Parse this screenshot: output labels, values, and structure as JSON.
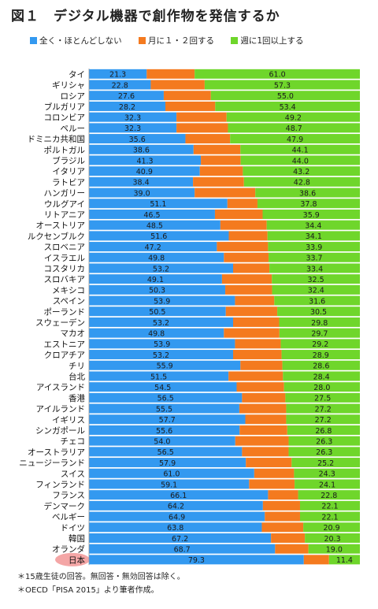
{
  "title": "図１　デジタル機器で創作物を発信するか",
  "legend": [
    {
      "label": "全く・ほとんどしない",
      "color": "#3399f0"
    },
    {
      "label": "月に１・２回する",
      "color": "#f47a1f"
    },
    {
      "label": "週に1回以上する",
      "color": "#6fd62b"
    }
  ],
  "highlight_color": "#f4a6a6",
  "notes": [
    "＊15歳生徒の回答。無回答・無効回答は除く。",
    "＊OECD「PISA 2015」より筆者作成。"
  ],
  "chart_data": {
    "type": "bar",
    "orientation": "horizontal",
    "stacked": "100%",
    "xlim": [
      0,
      100
    ],
    "categories": [
      "タイ",
      "ギリシャ",
      "ロシア",
      "ブルガリア",
      "コロンビア",
      "ペルー",
      "ドミニカ共和国",
      "ポルトガル",
      "ブラジル",
      "イタリア",
      "ラトビア",
      "ハンガリー",
      "ウルグアイ",
      "リトアニア",
      "オーストリア",
      "ルクセンブルク",
      "スロベニア",
      "イスラエル",
      "コスタリカ",
      "スロバキア",
      "メキシコ",
      "スペイン",
      "ポーランド",
      "スウェーデン",
      "マカオ",
      "エストニア",
      "クロアチア",
      "チリ",
      "台北",
      "アイスランド",
      "香港",
      "アイルランド",
      "イギリス",
      "シンガポール",
      "チェコ",
      "オーストラリア",
      "ニュージーランド",
      "スイス",
      "フィンランド",
      "フランス",
      "デンマーク",
      "ベルギー",
      "ドイツ",
      "韓国",
      "オランダ",
      "日本"
    ],
    "highlight_category": "日本",
    "series": [
      {
        "name": "全く・ほとんどしない",
        "color": "#3399f0",
        "values": [
          21.3,
          22.8,
          27.6,
          28.2,
          32.3,
          32.3,
          35.6,
          38.6,
          41.3,
          40.9,
          38.4,
          39.0,
          51.1,
          46.5,
          48.5,
          51.6,
          47.2,
          49.8,
          53.2,
          49.1,
          50.3,
          53.9,
          50.5,
          53.2,
          49.8,
          53.9,
          53.2,
          55.9,
          51.5,
          54.5,
          56.5,
          55.5,
          57.7,
          55.6,
          54.0,
          56.5,
          57.9,
          61.0,
          59.1,
          66.1,
          64.2,
          64.9,
          63.8,
          67.2,
          68.7,
          79.3
        ]
      },
      {
        "name": "月に１・２回する",
        "color": "#f47a1f",
        "values": [
          17.7,
          19.9,
          17.4,
          18.4,
          18.5,
          19.0,
          16.5,
          17.3,
          14.7,
          15.9,
          18.8,
          22.4,
          11.1,
          17.6,
          17.1,
          14.3,
          18.9,
          16.5,
          13.4,
          18.4,
          17.3,
          14.5,
          19.0,
          17.0,
          20.5,
          16.9,
          17.9,
          15.5,
          20.1,
          17.5,
          16.0,
          17.3,
          15.1,
          17.6,
          19.7,
          17.2,
          16.9,
          14.7,
          16.8,
          11.1,
          13.7,
          13.0,
          15.3,
          12.5,
          12.3,
          9.3
        ]
      },
      {
        "name": "週に1回以上する",
        "color": "#6fd62b",
        "values": [
          61.0,
          57.3,
          55.0,
          53.4,
          49.2,
          48.7,
          47.9,
          44.1,
          44.0,
          43.2,
          42.8,
          38.6,
          37.8,
          35.9,
          34.4,
          34.1,
          33.9,
          33.7,
          33.4,
          32.5,
          32.4,
          31.6,
          30.5,
          29.8,
          29.7,
          29.2,
          28.9,
          28.6,
          28.4,
          28.0,
          27.5,
          27.2,
          27.2,
          26.8,
          26.3,
          26.3,
          25.2,
          24.3,
          24.1,
          22.8,
          22.1,
          22.1,
          20.9,
          20.3,
          19.0,
          11.4
        ]
      }
    ],
    "data_labels": [
      "全く・ほとんどしない",
      "週に1回以上する"
    ]
  }
}
